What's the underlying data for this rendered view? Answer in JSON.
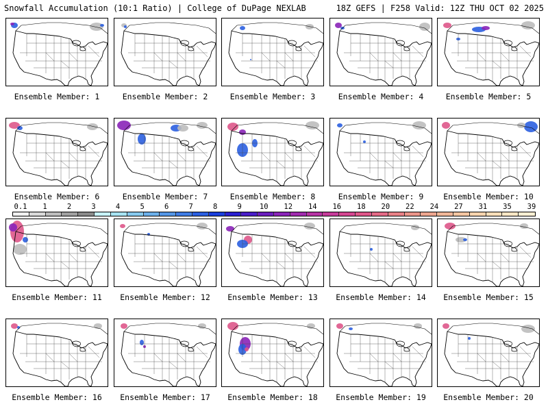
{
  "header": {
    "title_left": "Snowfall Accumulation (10:1 Ratio) | College of DuPage NEXLAB",
    "title_right": "18Z GEFS | F258 Valid: 12Z THU OCT 02 2025"
  },
  "panels": [
    {
      "label": "Ensemble Member: 1",
      "member": 1
    },
    {
      "label": "Ensemble Member: 2",
      "member": 2
    },
    {
      "label": "Ensemble Member: 3",
      "member": 3
    },
    {
      "label": "Ensemble Member: 4",
      "member": 4
    },
    {
      "label": "Ensemble Member: 5",
      "member": 5
    },
    {
      "label": "Ensemble Member: 6",
      "member": 6
    },
    {
      "label": "Ensemble Member: 7",
      "member": 7
    },
    {
      "label": "Ensemble Member: 8",
      "member": 8
    },
    {
      "label": "Ensemble Member: 9",
      "member": 9
    },
    {
      "label": "Ensemble Member: 10",
      "member": 10
    },
    {
      "label": "Ensemble Member: 11",
      "member": 11
    },
    {
      "label": "Ensemble Member: 12",
      "member": 12
    },
    {
      "label": "Ensemble Member: 13",
      "member": 13
    },
    {
      "label": "Ensemble Member: 14",
      "member": 14
    },
    {
      "label": "Ensemble Member: 15",
      "member": 15
    },
    {
      "label": "Ensemble Member: 16",
      "member": 16
    },
    {
      "label": "Ensemble Member: 17",
      "member": 17
    },
    {
      "label": "Ensemble Member: 18",
      "member": 18
    },
    {
      "label": "Ensemble Member: 19",
      "member": 19
    },
    {
      "label": "Ensemble Member: 20",
      "member": 20
    }
  ],
  "colorbar": {
    "ticks": [
      "0.1",
      "1",
      "2",
      "3",
      "4",
      "5",
      "6",
      "7",
      "8",
      "9",
      "10",
      "12",
      "14",
      "16",
      "18",
      "20",
      "22",
      "24",
      "27",
      "31",
      "35",
      "39"
    ],
    "colors": [
      "#f0f0f0",
      "#d9d9d9",
      "#bdbdbd",
      "#a0a0a0",
      "#8a8a8a",
      "#c6f2f7",
      "#a7e3f2",
      "#86c9ee",
      "#6cb0ea",
      "#5496e6",
      "#3f7ce4",
      "#2b5fe0",
      "#1a3fdc",
      "#2a20d0",
      "#4a1ec8",
      "#6a1ebd",
      "#8a24b8",
      "#a02cae",
      "#b633a4",
      "#c63c9a",
      "#d44791",
      "#de5689",
      "#e36a86",
      "#e78086",
      "#ea9489",
      "#eda68f",
      "#f0b697",
      "#f3c5a1",
      "#f6d3ad",
      "#f8ddb8",
      "#fae6c4",
      "#fcefd2"
    ]
  },
  "colors": {
    "land_lines": "#000000",
    "light_snow": "#bdbdbd",
    "blue_snow": "#2b5fe0",
    "purple_snow": "#8a24b8",
    "pink_snow": "#de5689"
  }
}
